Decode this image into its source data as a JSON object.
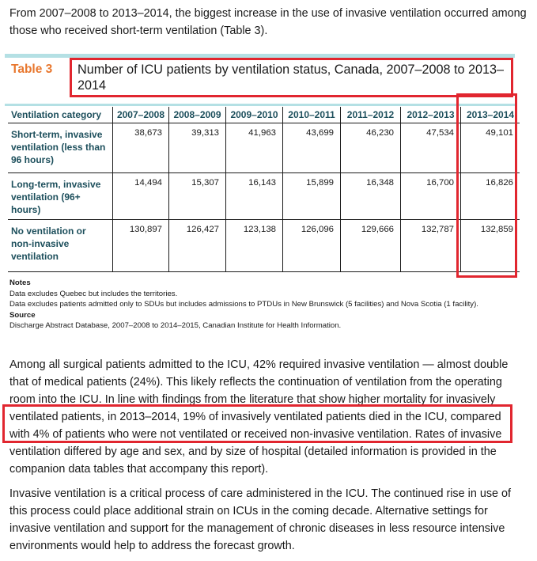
{
  "intro": "From 2007–2008 to 2013–2014, the biggest increase in the use of invasive ventilation occurred among those who received short-term ventilation (Table 3).",
  "table": {
    "label": "Table 3",
    "title": "Number of ICU patients by ventilation status, Canada, 2007–2008 to 2013–2014",
    "headers": [
      "Ventilation category",
      "2007–2008",
      "2008–2009",
      "2009–2010",
      "2010–2011",
      "2011–2012",
      "2012–2013",
      "2013–2014"
    ],
    "rows": [
      {
        "category": "Short-term, invasive ventilation (less than 96 hours)",
        "values": [
          "38,673",
          "39,313",
          "41,963",
          "43,699",
          "46,230",
          "47,534",
          "49,101"
        ]
      },
      {
        "category": "Long-term, invasive ventilation (96+ hours)",
        "values": [
          "14,494",
          "15,307",
          "16,143",
          "15,899",
          "16,348",
          "16,700",
          "16,826"
        ]
      },
      {
        "category": "No ventilation or non-invasive ventilation",
        "values": [
          "130,897",
          "126,427",
          "123,138",
          "126,096",
          "129,666",
          "132,787",
          "132,859"
        ]
      }
    ]
  },
  "notes": {
    "heading": "Notes",
    "line1": "Data excludes Quebec but includes the territories.",
    "line2": "Data excludes patients admitted only to SDUs but includes admissions to PTDUs in New Brunswick (5 facilities) and Nova Scotia (1 facility).",
    "source_heading": "Source",
    "source": "Discharge Abstract Database, 2007–2008 to 2014–2015, Canadian Institute for Health Information."
  },
  "paragraph1": "Among all surgical patients admitted to the ICU, 42% required invasive ventilation — almost double that of medical patients (24%). This likely reflects the continuation of ventilation from the operating room into the ICU. In line with findings from the literature that show higher mortality for invasively ventilated patients, in 2013–2014, 19% of invasively ventilated patients died in the ICU, compared with 4% of patients who were not ventilated or received non-invasive ventilation. Rates of invasive ventilation differed by age and sex, and by size of hospital (detailed information is provided in the companion data tables that accompany this report).",
  "paragraph2": "Invasive ventilation is a critical process of care administered in the ICU. The continued rise in use of this process could place additional strain on ICUs in the coming decade. Alternative settings for invasive ventilation and support for the management of chronic diseases in less resource intensive environments would help to address the forecast growth."
}
